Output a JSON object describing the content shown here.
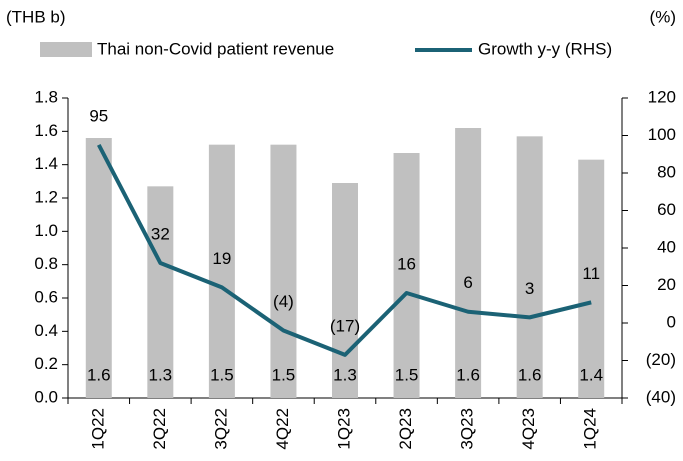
{
  "chart_data": {
    "type": "bar_line",
    "y_label": "(THB b)",
    "y2_label": "(%)",
    "categories": [
      "1Q22",
      "2Q22",
      "3Q22",
      "4Q22",
      "1Q23",
      "2Q23",
      "3Q23",
      "4Q23",
      "1Q24"
    ],
    "series": [
      {
        "name": "Thai non-Covid patient revenue",
        "type": "bar",
        "color": "#c0c0c0",
        "values": [
          1.56,
          1.27,
          1.52,
          1.52,
          1.29,
          1.47,
          1.62,
          1.57,
          1.43
        ],
        "value_labels": [
          "1.6",
          "1.3",
          "1.5",
          "1.5",
          "1.3",
          "1.5",
          "1.6",
          "1.6",
          "1.4"
        ]
      },
      {
        "name": "Growth y-y (RHS)",
        "type": "line",
        "axis": "y2",
        "color": "#1b6275",
        "values": [
          95,
          32,
          19,
          -4,
          -17,
          16,
          6,
          3,
          11
        ],
        "value_labels": [
          "95",
          "32",
          "19",
          "(4)",
          "(17)",
          "16",
          "6",
          "3",
          "11"
        ]
      }
    ],
    "ylim": [
      0,
      1.8
    ],
    "yticks": [
      {
        "value": 0,
        "label": "0.0"
      },
      0.2,
      0.4,
      0.6,
      0.8,
      {
        "value": 1,
        "label": "1.0"
      },
      1.2,
      1.4,
      1.6,
      1.8
    ],
    "y2lim": [
      -40,
      120
    ],
    "y2ticks": [
      {
        "value": -40,
        "label": "(40)"
      },
      {
        "value": -20,
        "label": "(20)"
      },
      0,
      20,
      40,
      60,
      80,
      100,
      120
    ],
    "legend": "top"
  }
}
